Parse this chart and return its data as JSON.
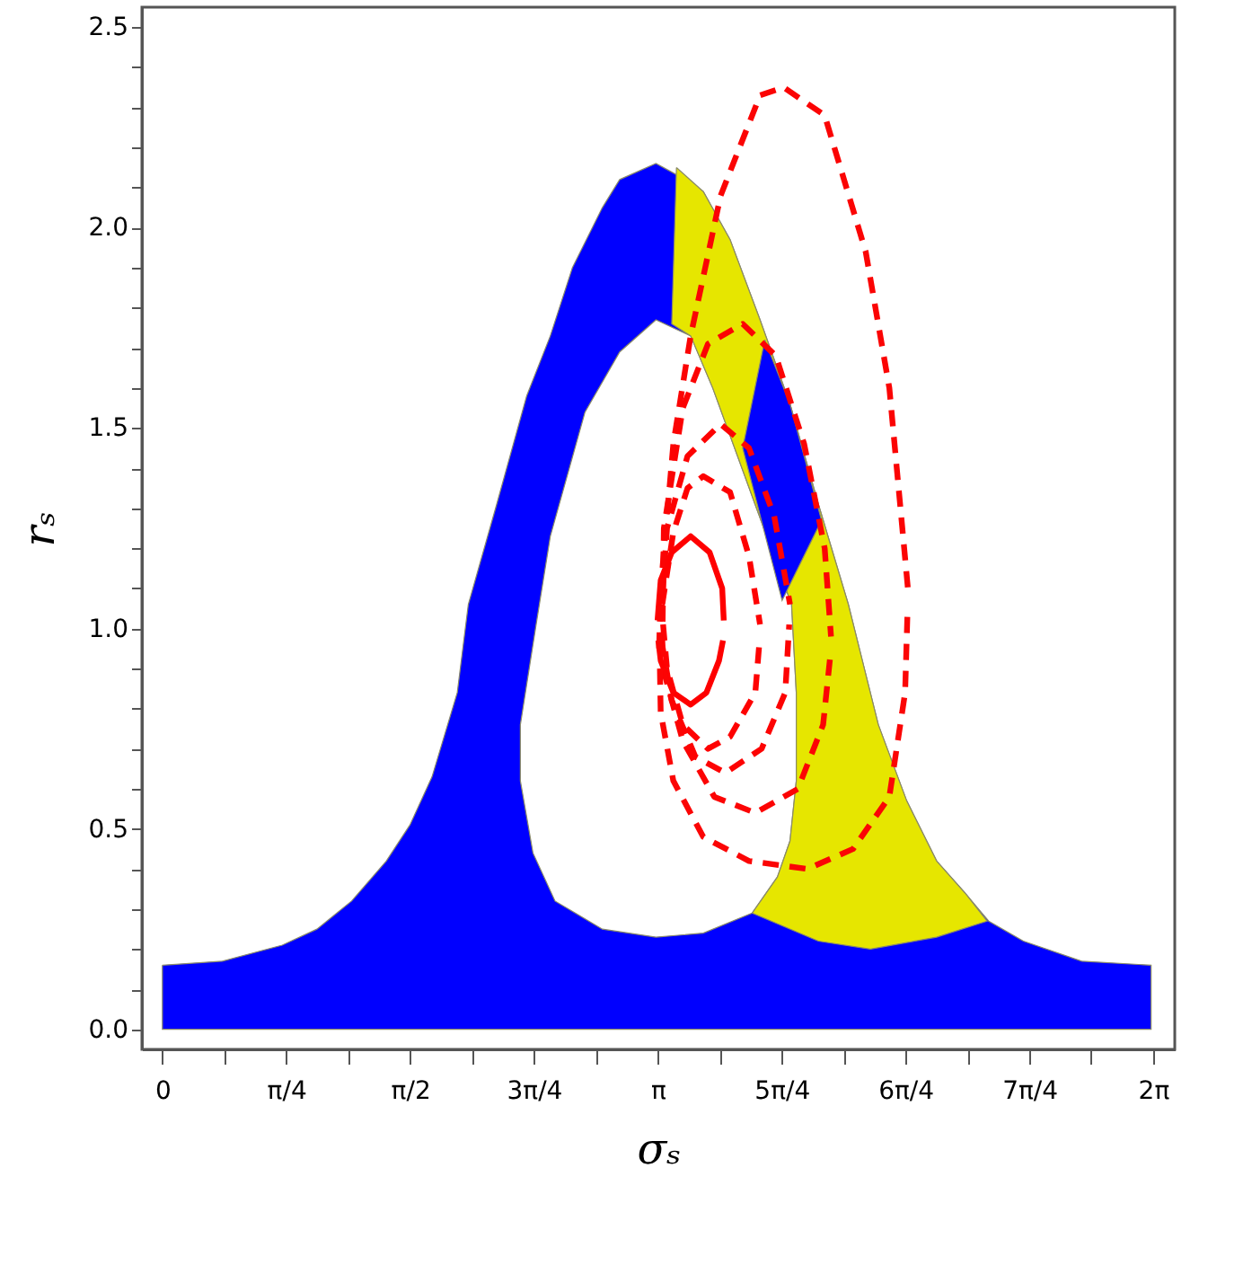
{
  "chart_data": {
    "type": "line",
    "xlabel": "σₛ",
    "ylabel": "rₛ",
    "grid": false,
    "xlim": [
      -0.13,
      6.42
    ],
    "ylim": [
      -0.05,
      2.55
    ],
    "xticks": [
      {
        "value": 0,
        "label": "0"
      },
      {
        "value": 0.393,
        "label": null
      },
      {
        "value": 0.785,
        "label": "π/4"
      },
      {
        "value": 1.178,
        "label": null
      },
      {
        "value": 1.571,
        "label": "π/2"
      },
      {
        "value": 1.963,
        "label": null
      },
      {
        "value": 2.356,
        "label": "3π/4"
      },
      {
        "value": 2.749,
        "label": null
      },
      {
        "value": 3.142,
        "label": "π"
      },
      {
        "value": 3.534,
        "label": null
      },
      {
        "value": 3.927,
        "label": "5π/4"
      },
      {
        "value": 4.32,
        "label": null
      },
      {
        "value": 4.712,
        "label": "6π/4"
      },
      {
        "value": 5.105,
        "label": null
      },
      {
        "value": 5.498,
        "label": "7π/4"
      },
      {
        "value": 5.89,
        "label": null
      },
      {
        "value": 6.283,
        "label": "2π"
      }
    ],
    "yticks": [
      {
        "value": 0,
        "label": "0.0"
      },
      {
        "value": 0.1,
        "label": null
      },
      {
        "value": 0.2,
        "label": null
      },
      {
        "value": 0.3,
        "label": null
      },
      {
        "value": 0.4,
        "label": null
      },
      {
        "value": 0.5,
        "label": "0.5"
      },
      {
        "value": 0.6,
        "label": null
      },
      {
        "value": 0.7,
        "label": null
      },
      {
        "value": 0.8,
        "label": null
      },
      {
        "value": 0.9,
        "label": null
      },
      {
        "value": 1,
        "label": "1.0"
      },
      {
        "value": 1.1,
        "label": null
      },
      {
        "value": 1.2,
        "label": null
      },
      {
        "value": 1.3,
        "label": null
      },
      {
        "value": 1.4,
        "label": null
      },
      {
        "value": 1.5,
        "label": "1.5"
      },
      {
        "value": 1.6,
        "label": null
      },
      {
        "value": 1.7,
        "label": null
      },
      {
        "value": 1.8,
        "label": null
      },
      {
        "value": 1.9,
        "label": null
      },
      {
        "value": 2,
        "label": "2.0"
      },
      {
        "value": 2.1,
        "label": null
      },
      {
        "value": 2.2,
        "label": null
      },
      {
        "value": 2.3,
        "label": null
      },
      {
        "value": 2.4,
        "label": null
      },
      {
        "value": 2.5,
        "label": "2.5"
      }
    ],
    "series": [
      {
        "type": "area",
        "color": "#0000ff",
        "x": [
          0,
          0.38,
          0.76,
          0.98,
          1.2,
          1.42,
          1.57,
          1.71,
          1.87,
          1.94,
          2.12,
          2.31,
          2.46,
          2.6,
          2.79,
          2.9,
          3.13,
          3.27,
          3.43,
          3.6,
          3.79,
          3.98,
          4.16,
          4.35,
          4.54,
          4.72,
          4.91,
          5.09,
          5.24,
          5.46,
          5.83,
          6.27,
          6.27,
          0,
          0
        ],
        "values": [
          0.16,
          0.17,
          0.21,
          0.25,
          0.32,
          0.42,
          0.51,
          0.63,
          0.84,
          1.06,
          1.31,
          1.58,
          1.73,
          1.9,
          2.05,
          2.12,
          2.16,
          2.13,
          2.09,
          1.97,
          1.77,
          1.56,
          1.31,
          1.06,
          0.76,
          0.57,
          0.42,
          0.34,
          0.27,
          0.22,
          0.17,
          0.16,
          0,
          0,
          0.16
        ]
      },
      {
        "type": "area",
        "color": "#ffffff",
        "x": [
          2.37,
          2.27,
          2.27,
          2.35,
          2.49,
          2.79,
          3.13,
          3.43,
          3.74,
          3.9,
          3.98,
          4.02,
          4.02,
          3.99,
          3.49,
          3.35,
          3.13,
          2.9,
          2.68,
          2.46,
          2.37
        ],
        "values": [
          1.01,
          0.76,
          0.62,
          0.44,
          0.32,
          0.25,
          0.23,
          0.24,
          0.29,
          0.38,
          0.47,
          0.62,
          0.84,
          1.06,
          1.6,
          1.73,
          1.77,
          1.69,
          1.54,
          1.23,
          1.01
        ]
      },
      {
        "type": "area",
        "color": "#e6e600",
        "x": [
          3.26,
          3.43,
          3.6,
          3.79,
          3.98,
          4.16,
          4.35,
          4.54,
          4.72,
          4.91,
          5.09,
          5.23,
          4.91,
          4.49,
          4.16,
          3.74,
          3.9,
          3.98,
          4.02,
          4.02,
          3.99,
          3.49,
          3.35,
          3.23,
          3.26
        ],
        "values": [
          2.15,
          2.09,
          1.97,
          1.77,
          1.56,
          1.31,
          1.06,
          0.76,
          0.57,
          0.42,
          0.34,
          0.27,
          0.23,
          0.2,
          0.22,
          0.29,
          0.38,
          0.47,
          0.62,
          0.84,
          1.06,
          1.6,
          1.73,
          1.76,
          2.15
        ]
      },
      {
        "type": "area",
        "color": "#0101fe",
        "x": [
          3.82,
          3.98,
          4.18,
          3.93,
          3.68,
          3.82
        ],
        "values": [
          1.72,
          1.56,
          1.27,
          1.07,
          1.45,
          1.72
        ]
      },
      {
        "type": "line",
        "line_style": "solid",
        "color": "#ff0000",
        "x": [
          3.14,
          3.16,
          3.23,
          3.35,
          3.47,
          3.55,
          3.56
        ],
        "values": [
          1.02,
          1.12,
          1.19,
          1.23,
          1.19,
          1.1,
          1.02
        ]
      },
      {
        "type": "line",
        "line_style": "solid",
        "color": "#fe0000",
        "x": [
          3.145,
          3.16,
          3.24,
          3.35,
          3.45,
          3.53,
          3.555
        ],
        "values": [
          0.97,
          0.92,
          0.84,
          0.81,
          0.84,
          0.92,
          0.97
        ]
      },
      {
        "type": "line",
        "line_style": "dashed",
        "color": "#fe0101",
        "x": [
          3.17,
          3.24,
          3.33,
          3.43,
          3.6,
          3.72,
          3.79
        ],
        "values": [
          1.06,
          1.24,
          1.35,
          1.38,
          1.34,
          1.18,
          1.01
        ]
      },
      {
        "type": "line",
        "line_style": "dashed",
        "color": "#fe0202",
        "x": [
          3.175,
          3.2,
          3.3,
          3.46,
          3.6,
          3.76,
          3.785
        ],
        "values": [
          1.01,
          0.9,
          0.76,
          0.7,
          0.73,
          0.84,
          0.96
        ]
      },
      {
        "type": "line",
        "line_style": "dashed",
        "color": "#fd0202",
        "x": [
          3.16,
          3.2,
          3.33,
          3.54,
          3.72,
          3.88,
          3.98
        ],
        "values": [
          1.02,
          1.25,
          1.43,
          1.51,
          1.45,
          1.28,
          1.06
        ]
      },
      {
        "type": "line",
        "line_style": "dashed",
        "color": "#fd0303",
        "x": [
          3.165,
          3.23,
          3.38,
          3.57,
          3.8,
          3.95,
          3.975
        ],
        "values": [
          0.97,
          0.82,
          0.68,
          0.64,
          0.7,
          0.84,
          1.01
        ]
      },
      {
        "type": "line",
        "line_style": "dashed",
        "color": "#fc0303",
        "x": [
          3.17,
          3.18,
          3.3,
          3.46,
          3.68,
          3.89,
          4.07,
          4.2,
          4.24
        ],
        "values": [
          0.95,
          1.25,
          1.55,
          1.71,
          1.76,
          1.68,
          1.46,
          1.2,
          0.98
        ]
      },
      {
        "type": "line",
        "line_style": "dashed",
        "color": "#fc0404",
        "x": [
          3.175,
          3.3,
          3.5,
          3.76,
          4.03,
          4.19,
          4.235
        ],
        "values": [
          0.9,
          0.72,
          0.58,
          0.54,
          0.6,
          0.76,
          0.93
        ]
      },
      {
        "type": "line",
        "line_style": "dashed",
        "color": "#fb0404",
        "x": [
          3.15,
          3.16,
          3.24,
          3.35,
          3.54,
          3.79,
          3.94,
          4.2,
          4.46,
          4.61,
          4.73
        ],
        "values": [
          0.95,
          1.1,
          1.46,
          1.73,
          2.08,
          2.33,
          2.35,
          2.28,
          1.94,
          1.6,
          1.09
        ]
      },
      {
        "type": "line",
        "line_style": "dashed",
        "color": "#fb0505",
        "x": [
          3.155,
          3.16,
          3.24,
          3.43,
          3.72,
          4.09,
          4.38,
          4.61,
          4.71,
          4.725
        ],
        "values": [
          0.9,
          0.79,
          0.62,
          0.48,
          0.42,
          0.4,
          0.45,
          0.58,
          0.84,
          1.04
        ]
      }
    ]
  }
}
